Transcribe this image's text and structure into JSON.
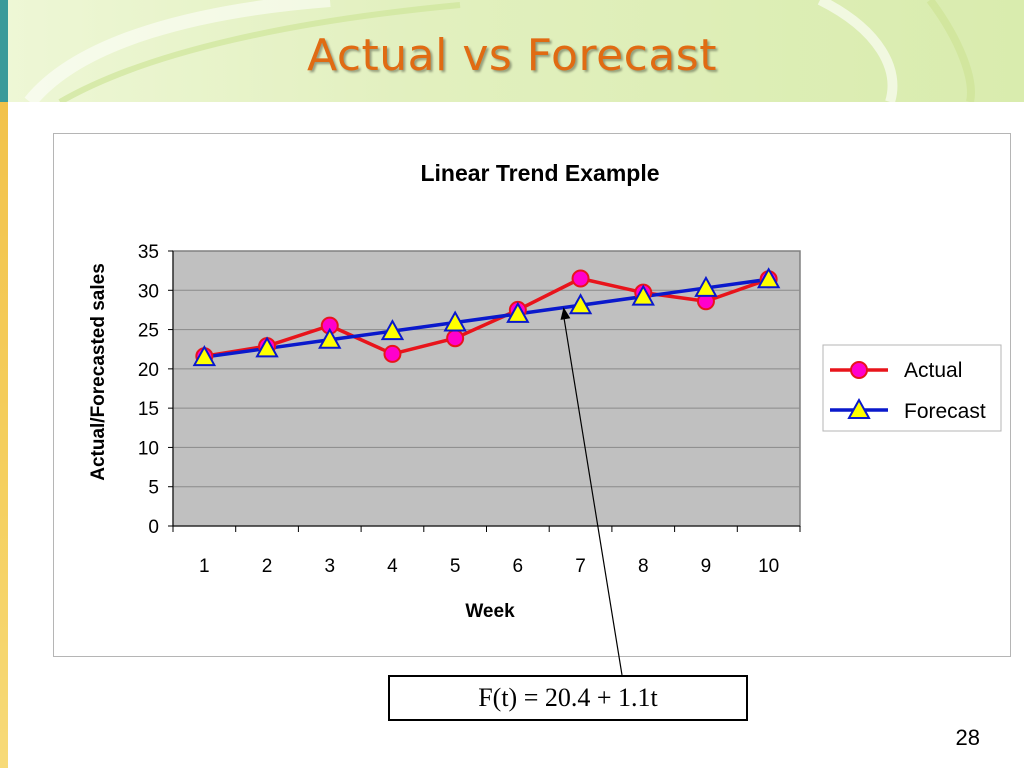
{
  "slide": {
    "title": "Actual vs Forecast",
    "formula": "F(t) = 20.4 + 1.1t",
    "page_number": "28"
  },
  "colors": {
    "title": "#e06b13",
    "actual_line": "#e8141b",
    "actual_marker": "#ff00cc",
    "forecast_line": "#0a19cc",
    "forecast_marker": "#ffff00",
    "plot_background": "#c0c0c0"
  },
  "chart_data": {
    "type": "line",
    "title": "Linear Trend Example",
    "xlabel": "Week",
    "ylabel": "Actual/Forecasted sales",
    "categories": [
      "1",
      "2",
      "3",
      "4",
      "5",
      "6",
      "7",
      "8",
      "9",
      "10"
    ],
    "ylim": [
      0,
      35
    ],
    "yticks": [
      "0",
      "5",
      "10",
      "15",
      "20",
      "25",
      "30",
      "35"
    ],
    "grid": true,
    "legend_position": "right",
    "series": [
      {
        "name": "Actual",
        "marker": "circle",
        "values": [
          21.6,
          22.9,
          25.5,
          21.9,
          23.9,
          27.5,
          31.5,
          29.7,
          28.6,
          31.4
        ]
      },
      {
        "name": "Forecast",
        "marker": "triangle",
        "values": [
          21.5,
          22.6,
          23.7,
          24.8,
          25.9,
          27.0,
          28.1,
          29.2,
          30.3,
          31.4
        ]
      }
    ],
    "annotation": {
      "text": "F(t) = 20.4 + 1.1t",
      "points_to_week": 7,
      "series": "Forecast"
    }
  }
}
